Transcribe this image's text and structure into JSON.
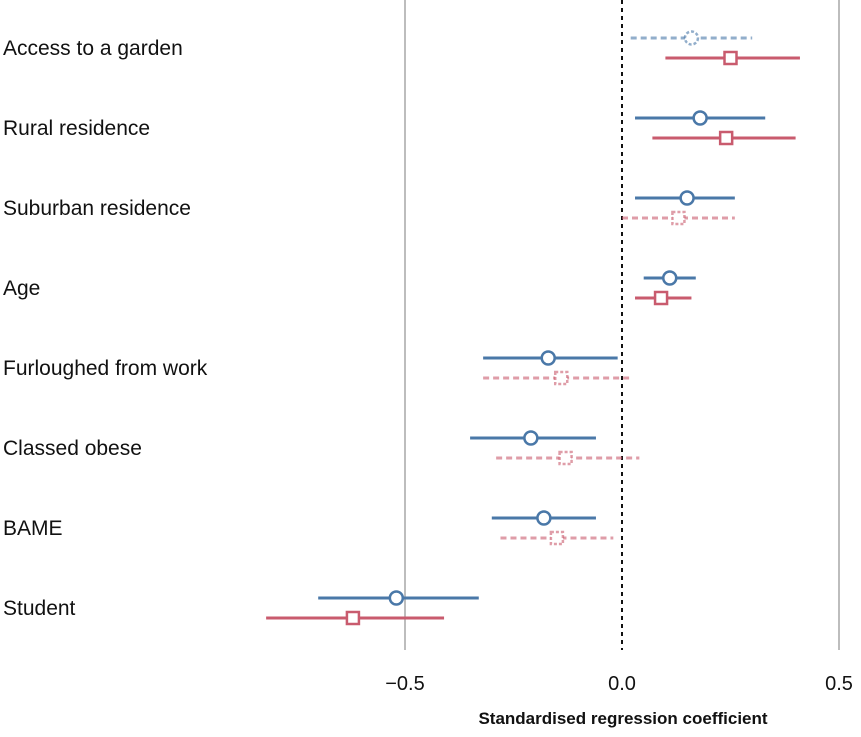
{
  "chart_data": {
    "type": "forest",
    "xlabel": "Standardised regression coefficient",
    "xlim": [
      -0.5,
      0.5
    ],
    "xticks": [
      -0.5,
      0.0,
      0.5
    ],
    "xtick_labels": [
      "−0.5",
      "0.0",
      "0.5"
    ],
    "reference_line": 0.0,
    "grid": "vertical lines at -0.5 and 0.5",
    "legend": "none",
    "categories": [
      "Access to a garden",
      "Rural residence",
      "Suburban residence",
      "Age",
      "Furloughed from work",
      "Classed obese",
      "BAME",
      "Student"
    ],
    "series": [
      {
        "marker": "circle",
        "color": "#4a78a8",
        "estimates": [
          0.16,
          0.18,
          0.15,
          0.11,
          -0.17,
          -0.21,
          -0.18,
          -0.52
        ],
        "ci_low": [
          0.02,
          0.03,
          0.03,
          0.05,
          -0.32,
          -0.35,
          -0.3,
          -0.7
        ],
        "ci_high": [
          0.3,
          0.33,
          0.26,
          0.17,
          -0.01,
          -0.06,
          -0.06,
          -0.33
        ],
        "significant": [
          false,
          true,
          true,
          true,
          true,
          true,
          true,
          true
        ]
      },
      {
        "marker": "square",
        "color": "#c95b6e",
        "estimates": [
          0.25,
          0.24,
          0.13,
          0.09,
          -0.14,
          -0.13,
          -0.15,
          -0.62
        ],
        "ci_low": [
          0.1,
          0.07,
          0.0,
          0.03,
          -0.32,
          -0.29,
          -0.28,
          -0.82
        ],
        "ci_high": [
          0.41,
          0.4,
          0.26,
          0.16,
          0.02,
          0.04,
          -0.02,
          -0.41
        ],
        "significant": [
          true,
          true,
          false,
          true,
          false,
          false,
          false,
          true
        ]
      }
    ]
  }
}
